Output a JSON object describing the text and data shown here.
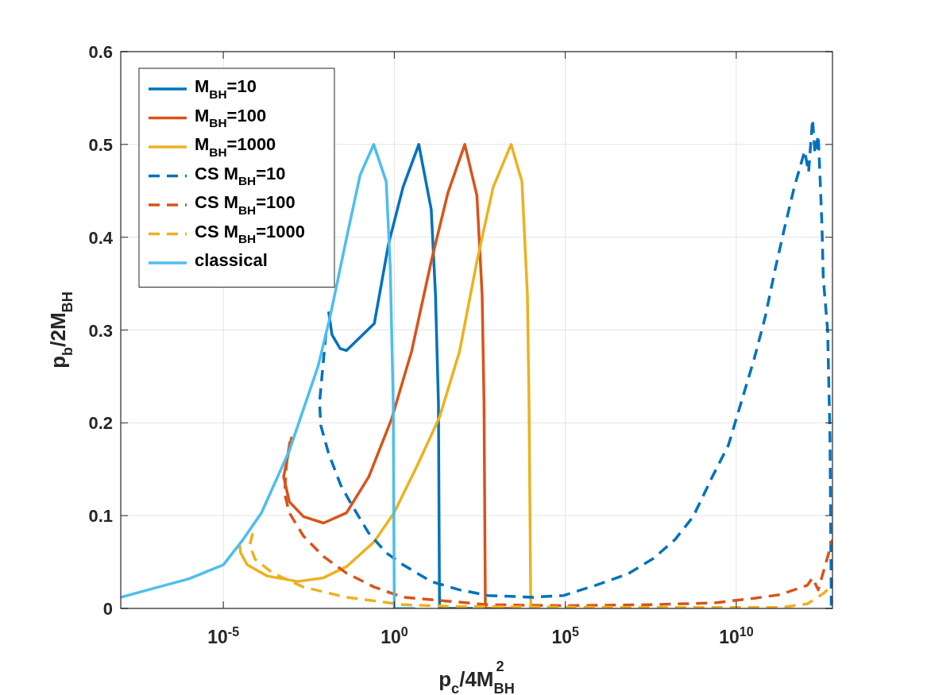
{
  "chart_data": {
    "type": "line",
    "xlabel": "p$_{c}$/4M$_{BH}$$^{2}$",
    "ylabel": "p$_{b}$/2M$_{BH}$",
    "log": "x",
    "grid": true,
    "legend": "top left",
    "marker": "none",
    "xlim": [
      1e-08,
      6500000000000.0
    ],
    "xticks": [
      {
        "value": 1e-05,
        "label": "10$^{-5}$"
      },
      {
        "value": 1,
        "label": "10$^{0}$"
      },
      {
        "value": 100000.0,
        "label": "10$^{5}$"
      },
      {
        "value": 10000000000.0,
        "label": "10$^{10}$"
      }
    ],
    "ylim": [
      0,
      0.6
    ],
    "yticks": [
      0,
      0.1,
      0.2,
      0.3,
      0.4,
      0.5,
      0.6
    ],
    "series": [
      {
        "name": "M$_{BH}$=10",
        "color": "#0072bd",
        "line_style": "solid",
        "x": [
          0.012,
          0.015,
          0.026,
          0.04,
          0.26,
          0.68,
          1.8,
          5.2,
          12,
          16,
          19.5,
          21,
          200
        ],
        "values": [
          0.32,
          0.295,
          0.28,
          0.278,
          0.307,
          0.393,
          0.454,
          0.5,
          0.43,
          0.338,
          0.222,
          0,
          0
        ]
      },
      {
        "name": "M$_{BH}$=100",
        "color": "#d95319",
        "line_style": "solid",
        "x": [
          0.001,
          0.00058,
          0.00085,
          0.0022,
          0.0085,
          0.04,
          0.18,
          0.83,
          3.2,
          12,
          37,
          115,
          260,
          370,
          420,
          460,
          3700
        ],
        "values": [
          0.185,
          0.142,
          0.115,
          0.099,
          0.092,
          0.103,
          0.142,
          0.204,
          0.277,
          0.374,
          0.448,
          0.5,
          0.445,
          0.338,
          0.222,
          0,
          0
        ]
      },
      {
        "name": "M$_{BH}$=1000",
        "color": "#edb120",
        "line_style": "solid",
        "x": [
          3e-05,
          3.2e-05,
          5e-05,
          0.00019,
          0.0015,
          0.0085,
          0.04,
          0.26,
          0.98,
          4.7,
          21,
          81,
          260,
          780,
          2600,
          5400,
          7800,
          8700,
          9800,
          19000
        ],
        "values": [
          0.068,
          0.06,
          0.047,
          0.035,
          0.029,
          0.033,
          0.045,
          0.072,
          0.103,
          0.154,
          0.206,
          0.277,
          0.374,
          0.454,
          0.5,
          0.46,
          0.338,
          0.222,
          0,
          0
        ]
      },
      {
        "name": "CS M$_{BH}$=10",
        "color": "#0072bd",
        "line_style": "dashed",
        "x": [
          0.01,
          0.0065,
          0.0071,
          0.012,
          0.027,
          0.058,
          0.18,
          0.58,
          1.8,
          12,
          81,
          540,
          11000.0,
          91000.0,
          780000.0,
          6600000.0,
          38000000.0,
          160000000.0,
          550000000.0,
          2000000000.0,
          5900000000.0,
          34000000000.0,
          69000000000.0,
          140000000000.0,
          250000000000.0,
          490000000000.0,
          1000000000000.0,
          1300000000000.0,
          1700000000000.0,
          2000000000000.0,
          2500000000000.0,
          2900000000000.0,
          3200000000000.0,
          3500000000000.0,
          4700000000000.0,
          5500000000000.0,
          6000000000000.0
        ],
        "values": [
          0.296,
          0.222,
          0.197,
          0.167,
          0.133,
          0.111,
          0.081,
          0.06,
          0.047,
          0.029,
          0.02,
          0.014,
          0.012,
          0.014,
          0.025,
          0.037,
          0.054,
          0.074,
          0.099,
          0.142,
          0.176,
          0.27,
          0.313,
          0.367,
          0.408,
          0.453,
          0.493,
          0.47,
          0.527,
          0.49,
          0.51,
          0.453,
          0.413,
          0.356,
          0.299,
          0.185,
          0.003
        ]
      },
      {
        "name": "CS M$_{BH}$=100",
        "color": "#d95319",
        "line_style": "dashed",
        "x": [
          0.00089,
          0.00071,
          0.00062,
          0.00085,
          0.0022,
          0.0085,
          0.04,
          0.26,
          1.8,
          32,
          540,
          91000.0,
          28000000.0,
          2300000000.0,
          34000000000.0,
          200000000000.0,
          1200000000000.0,
          1700000000000.0,
          2500000000000.0,
          6500000000000.0
        ],
        "values": [
          0.18,
          0.158,
          0.124,
          0.103,
          0.078,
          0.056,
          0.038,
          0.023,
          0.012,
          0.008,
          0.004,
          0.003,
          0.004,
          0.006,
          0.011,
          0.015,
          0.025,
          0.033,
          0.02,
          0.074
        ]
      },
      {
        "name": "CS M$_{BH}$=1000",
        "color": "#edb120",
        "line_style": "dashed",
        "x": [
          7.2e-05,
          5.9e-05,
          8.5e-05,
          0.00028,
          0.0022,
          0.04,
          1.8,
          79,
          28000000.0,
          200000000000.0,
          1200000000000.0,
          3500000000000.0,
          6500000000000.0
        ],
        "values": [
          0.081,
          0.068,
          0.053,
          0.038,
          0.023,
          0.012,
          0.004,
          0.002,
          0.001,
          0.001,
          0.005,
          0.016,
          0.025
        ]
      },
      {
        "name": "classical",
        "color": "#4dbeee",
        "line_style": "solid",
        "x": [
          1e-08,
          6.3e-08,
          1e-06,
          1e-05,
          3.4e-05,
          0.00013,
          0.00085,
          0.0059,
          0.013,
          0.04,
          0.1,
          0.25,
          0.58,
          0.76,
          0.93,
          1.0,
          4.0
        ],
        "values": [
          0.012,
          0.02,
          0.032,
          0.047,
          0.072,
          0.103,
          0.17,
          0.261,
          0.313,
          0.399,
          0.467,
          0.5,
          0.46,
          0.368,
          0.222,
          0,
          0
        ]
      }
    ]
  }
}
